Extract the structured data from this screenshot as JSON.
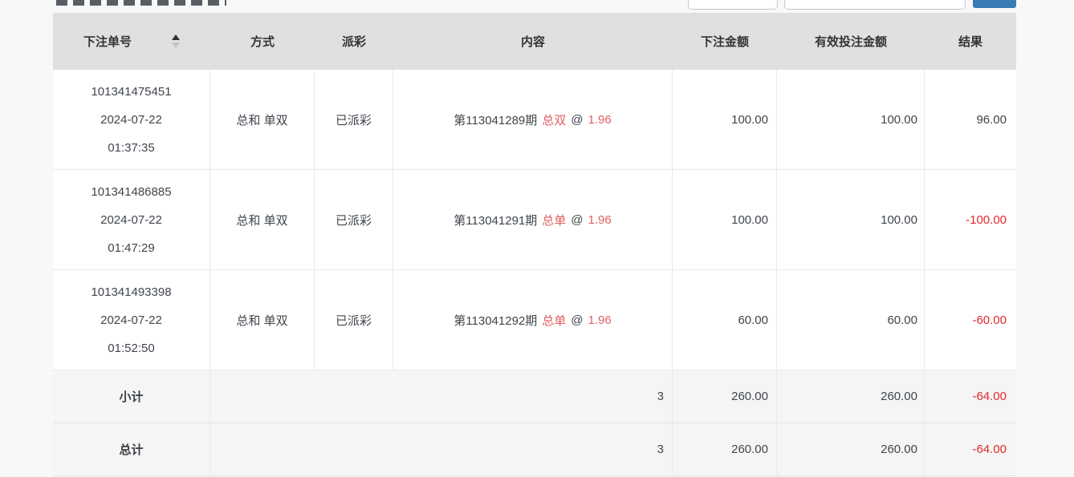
{
  "topbar": {
    "input1_value": "",
    "input2_value": "",
    "search_button_label": ""
  },
  "colors": {
    "accent_blue": "#377bb5",
    "content_red": "#e05f5e",
    "result_red": "#df2a2a"
  },
  "table": {
    "headers": {
      "order_no": "下注单号",
      "method": "方式",
      "payout": "派彩",
      "content": "内容",
      "bet_amount": "下注金额",
      "valid_amount": "有效投注金额",
      "result": "结果"
    },
    "rows": [
      {
        "order_id": "101341475451",
        "order_date": "2024-07-22",
        "order_time": "01:37:35",
        "method": "总和 单双",
        "payout_status": "已派彩",
        "content": {
          "period": "第113041289期",
          "pick": "总双",
          "at": "@",
          "odds": "1.96"
        },
        "bet_amount": "100.00",
        "valid_amount": "100.00",
        "result": "96.00"
      },
      {
        "order_id": "101341486885",
        "order_date": "2024-07-22",
        "order_time": "01:47:29",
        "method": "总和 单双",
        "payout_status": "已派彩",
        "content": {
          "period": "第113041291期",
          "pick": "总单",
          "at": "@",
          "odds": "1.96"
        },
        "bet_amount": "100.00",
        "valid_amount": "100.00",
        "result": "-100.00"
      },
      {
        "order_id": "101341493398",
        "order_date": "2024-07-22",
        "order_time": "01:52:50",
        "method": "总和 单双",
        "payout_status": "已派彩",
        "content": {
          "period": "第113041292期",
          "pick": "总单",
          "at": "@",
          "odds": "1.96"
        },
        "bet_amount": "60.00",
        "valid_amount": "60.00",
        "result": "-60.00"
      }
    ],
    "subtotal": {
      "label": "小计",
      "count": "3",
      "bet_amount": "260.00",
      "valid_amount": "260.00",
      "result": "-64.00"
    },
    "total": {
      "label": "总计",
      "count": "3",
      "bet_amount": "260.00",
      "valid_amount": "260.00",
      "result": "-64.00"
    }
  }
}
